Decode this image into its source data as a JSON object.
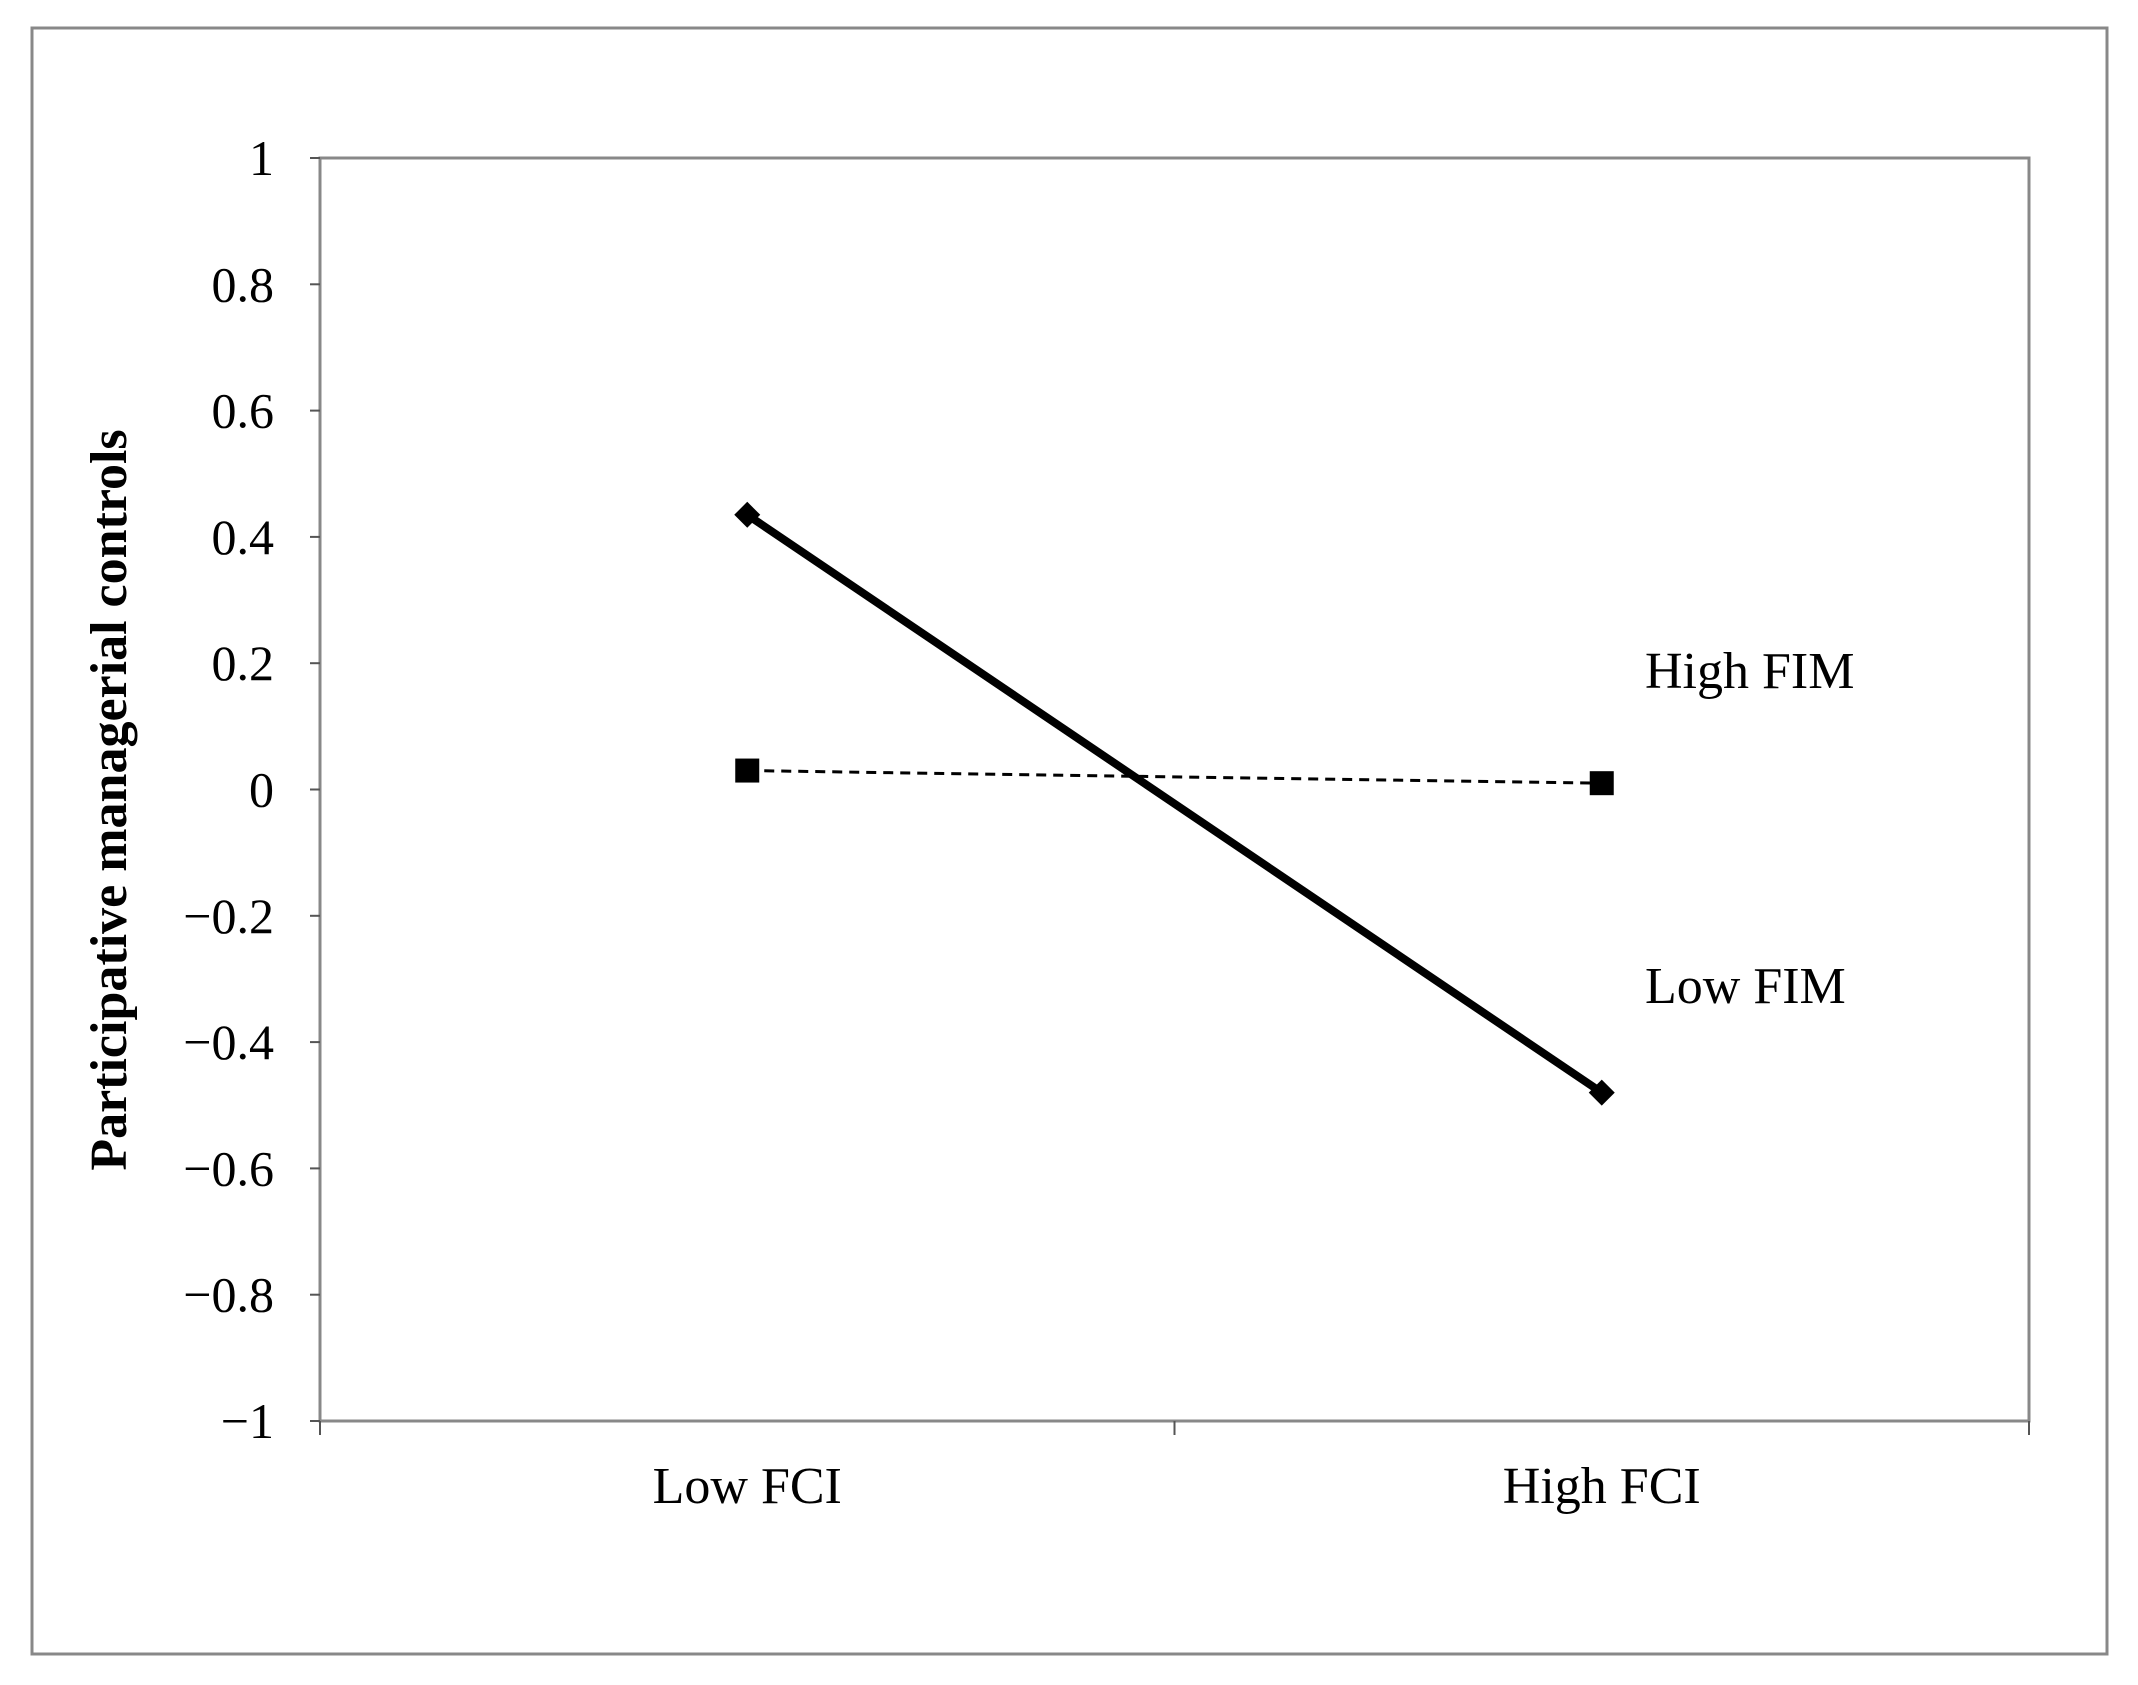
{
  "chart_data": {
    "type": "line",
    "title": "",
    "xlabel": "",
    "ylabel": "Participative managerial controls",
    "categories": [
      "Low FCI",
      "High FCI"
    ],
    "ylim": [
      -1,
      1
    ],
    "yticks": [
      1,
      0.8,
      0.6,
      0.4,
      0.2,
      0,
      -0.2,
      -0.4,
      -0.6,
      -0.8,
      -1
    ],
    "ytick_labels": [
      "1",
      "0.8",
      "0.6",
      "0.4",
      "0.2",
      "0",
      "−0.2",
      "−0.4",
      "−0.6",
      "−0.8",
      "−1"
    ],
    "grid": false,
    "legend": "none",
    "series": [
      {
        "name": "Low FIM",
        "values": [
          0.435,
          -0.48
        ],
        "marker": "diamond",
        "line_style": "solid",
        "color": "#000000"
      },
      {
        "name": "High FIM",
        "values": [
          0.03,
          0.01
        ],
        "marker": "square",
        "line_style": "dashed",
        "color": "#000000"
      }
    ]
  }
}
